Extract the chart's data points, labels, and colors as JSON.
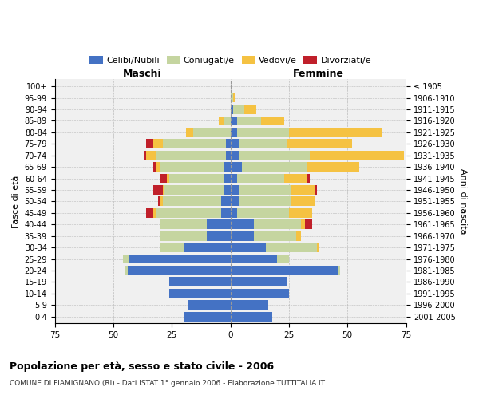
{
  "age_groups": [
    "0-4",
    "5-9",
    "10-14",
    "15-19",
    "20-24",
    "25-29",
    "30-34",
    "35-39",
    "40-44",
    "45-49",
    "50-54",
    "55-59",
    "60-64",
    "65-69",
    "70-74",
    "75-79",
    "80-84",
    "85-89",
    "90-94",
    "95-99",
    "100+"
  ],
  "birth_years": [
    "2001-2005",
    "1996-2000",
    "1991-1995",
    "1986-1990",
    "1981-1985",
    "1976-1980",
    "1971-1975",
    "1966-1970",
    "1961-1965",
    "1956-1960",
    "1951-1955",
    "1946-1950",
    "1941-1945",
    "1936-1940",
    "1931-1935",
    "1926-1930",
    "1921-1925",
    "1916-1920",
    "1911-1915",
    "1906-1910",
    "≤ 1905"
  ],
  "males_celibe": [
    20,
    18,
    26,
    26,
    44,
    43,
    20,
    10,
    10,
    4,
    4,
    3,
    3,
    3,
    2,
    2,
    0,
    0,
    0,
    0,
    0
  ],
  "males_coniugato": [
    0,
    0,
    0,
    0,
    1,
    3,
    10,
    20,
    20,
    28,
    25,
    25,
    23,
    27,
    30,
    27,
    16,
    3,
    0,
    0,
    0
  ],
  "males_vedovo": [
    0,
    0,
    0,
    0,
    0,
    0,
    0,
    0,
    0,
    1,
    1,
    1,
    1,
    2,
    4,
    4,
    3,
    2,
    0,
    0,
    0
  ],
  "males_divorziato": [
    0,
    0,
    0,
    0,
    0,
    0,
    0,
    0,
    0,
    3,
    1,
    4,
    3,
    1,
    1,
    3,
    0,
    0,
    0,
    0,
    0
  ],
  "females_celibe": [
    18,
    16,
    25,
    24,
    46,
    20,
    15,
    10,
    10,
    3,
    4,
    4,
    3,
    5,
    4,
    4,
    3,
    3,
    1,
    0,
    0
  ],
  "females_coniugato": [
    0,
    0,
    0,
    0,
    1,
    5,
    22,
    18,
    20,
    22,
    22,
    22,
    20,
    28,
    30,
    20,
    22,
    10,
    5,
    1,
    0
  ],
  "females_vedovo": [
    0,
    0,
    0,
    0,
    0,
    0,
    1,
    2,
    2,
    10,
    10,
    10,
    10,
    22,
    40,
    28,
    40,
    10,
    5,
    1,
    0
  ],
  "females_divorziato": [
    0,
    0,
    0,
    0,
    0,
    0,
    0,
    0,
    3,
    0,
    0,
    1,
    1,
    0,
    0,
    0,
    0,
    0,
    0,
    0,
    0
  ],
  "color_celibe": "#4472C4",
  "color_coniugato": "#C5D5A0",
  "color_vedovo": "#F5C242",
  "color_divorziato": "#C0202A",
  "color_bg": "#FFFFFF",
  "color_panel_bg": "#F0F0F0",
  "color_grid": "#BBBBBB",
  "xlim": 75,
  "title": "Popolazione per età, sesso e stato civile - 2006",
  "subtitle": "COMUNE DI FIAMIGNANO (RI) - Dati ISTAT 1° gennaio 2006 - Elaborazione TUTTITALIA.IT",
  "ylabel_left": "Fasce di età",
  "ylabel_right": "Anni di nascita",
  "xlabel_left": "Maschi",
  "xlabel_right": "Femmine"
}
